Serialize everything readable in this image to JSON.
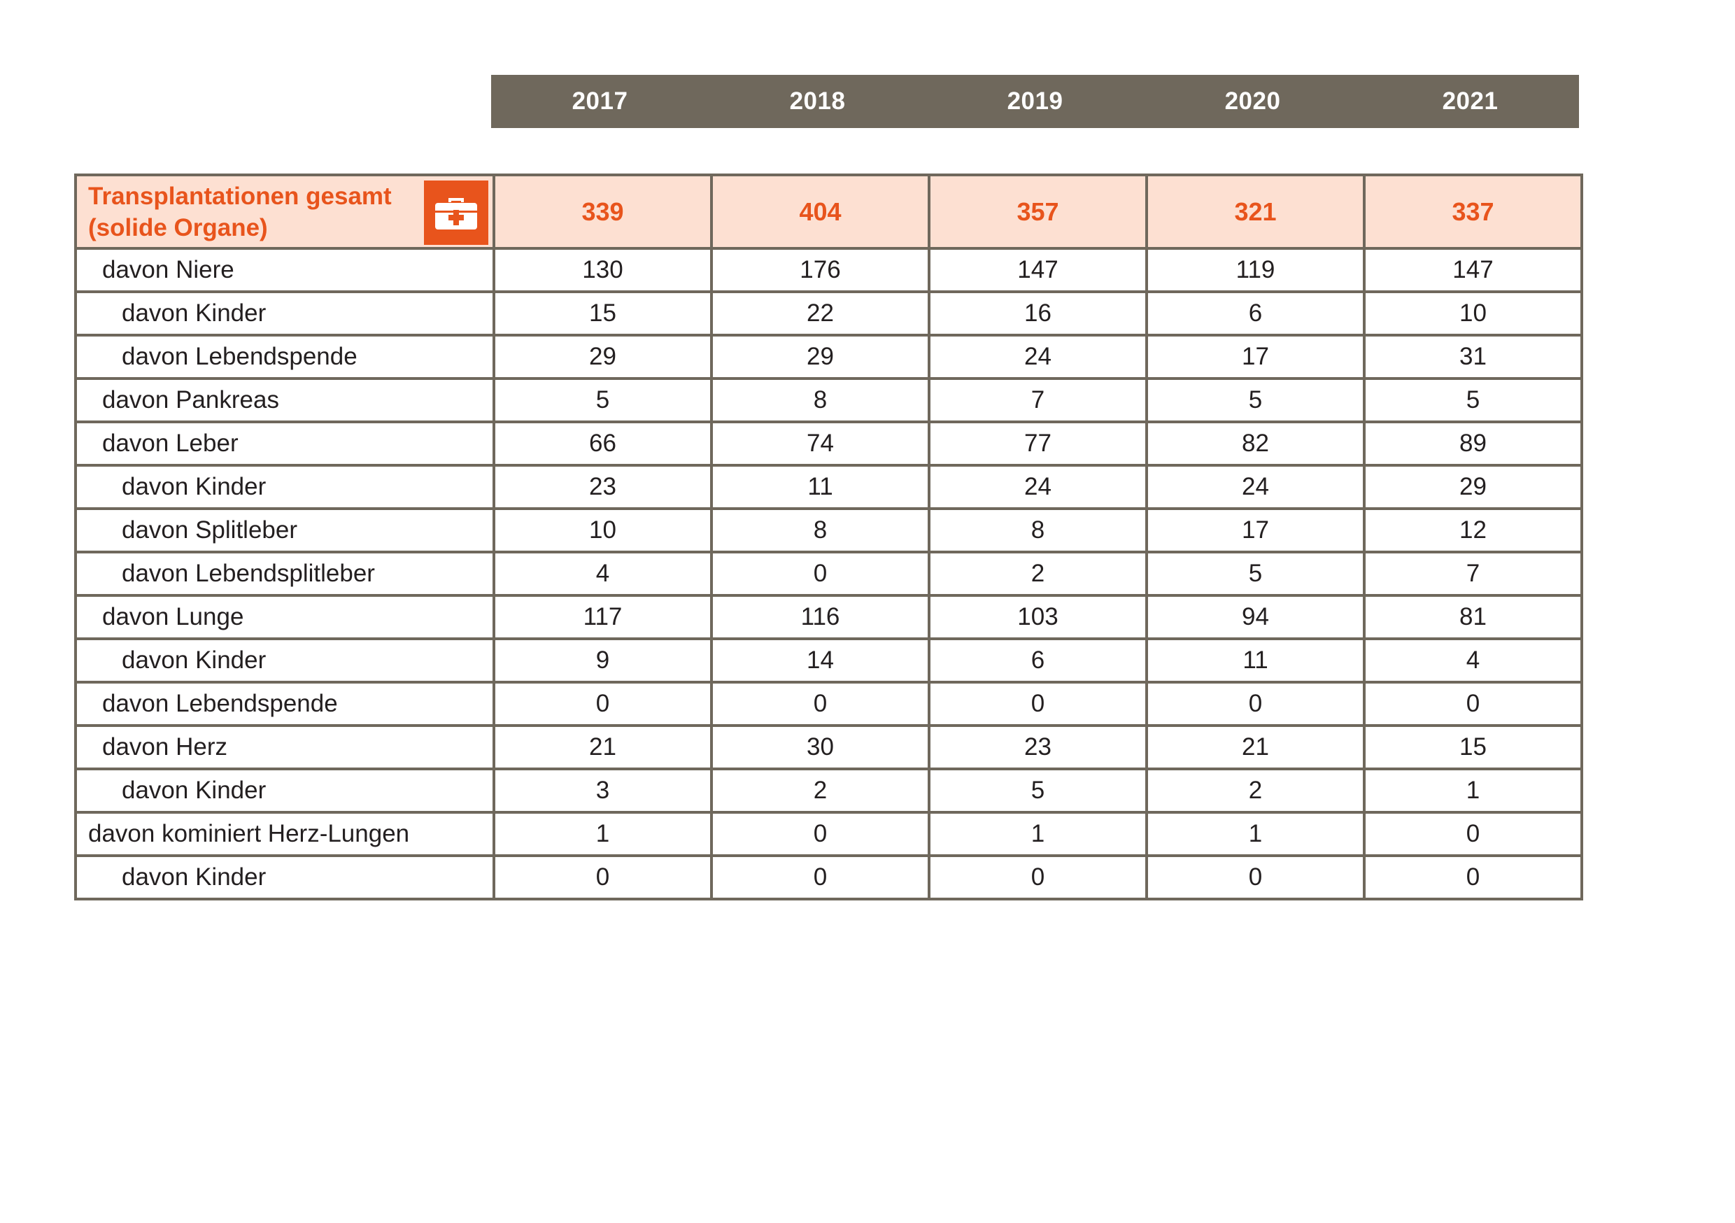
{
  "years": [
    "2017",
    "2018",
    "2019",
    "2020",
    "2021"
  ],
  "total": {
    "label": "Transplantationen gesamt (solide Organe)",
    "icon": "first-aid-kit-icon",
    "values": [
      "339",
      "404",
      "357",
      "321",
      "337"
    ]
  },
  "rows": [
    {
      "label": "davon Niere",
      "indent": 1,
      "values": [
        "130",
        "176",
        "147",
        "119",
        "147"
      ]
    },
    {
      "label": "davon Kinder",
      "indent": 2,
      "values": [
        "15",
        "22",
        "16",
        "6",
        "10"
      ]
    },
    {
      "label": "davon Lebendspende",
      "indent": 2,
      "values": [
        "29",
        "29",
        "24",
        "17",
        "31"
      ]
    },
    {
      "label": "davon Pankreas",
      "indent": 1,
      "values": [
        "5",
        "8",
        "7",
        "5",
        "5"
      ]
    },
    {
      "label": "davon Leber",
      "indent": 1,
      "values": [
        "66",
        "74",
        "77",
        "82",
        "89"
      ]
    },
    {
      "label": "davon Kinder",
      "indent": 2,
      "values": [
        "23",
        "11",
        "24",
        "24",
        "29"
      ]
    },
    {
      "label": "davon Splitleber",
      "indent": 2,
      "values": [
        "10",
        "8",
        "8",
        "17",
        "12"
      ]
    },
    {
      "label": "davon Lebendsplitleber",
      "indent": 2,
      "values": [
        "4",
        "0",
        "2",
        "5",
        "7"
      ]
    },
    {
      "label": "davon Lunge",
      "indent": 1,
      "values": [
        "117",
        "116",
        "103",
        "94",
        "81"
      ]
    },
    {
      "label": "davon Kinder",
      "indent": 2,
      "values": [
        "9",
        "14",
        "6",
        "11",
        "4"
      ]
    },
    {
      "label": "davon Lebendspende",
      "indent": 1,
      "values": [
        "0",
        "0",
        "0",
        "0",
        "0"
      ]
    },
    {
      "label": "davon Herz",
      "indent": 1,
      "values": [
        "21",
        "30",
        "23",
        "21",
        "15"
      ]
    },
    {
      "label": "davon Kinder",
      "indent": 2,
      "values": [
        "3",
        "2",
        "5",
        "2",
        "1"
      ]
    },
    {
      "label": "davon kominiert Herz-Lungen",
      "indent": 0,
      "values": [
        "1",
        "0",
        "1",
        "1",
        "0"
      ]
    },
    {
      "label": "davon Kinder",
      "indent": 2,
      "values": [
        "0",
        "0",
        "0",
        "0",
        "0"
      ]
    }
  ],
  "colors": {
    "header_bg": "#6f685c",
    "accent": "#e8541c",
    "total_bg": "#fde0d2",
    "border": "#6f685c"
  }
}
